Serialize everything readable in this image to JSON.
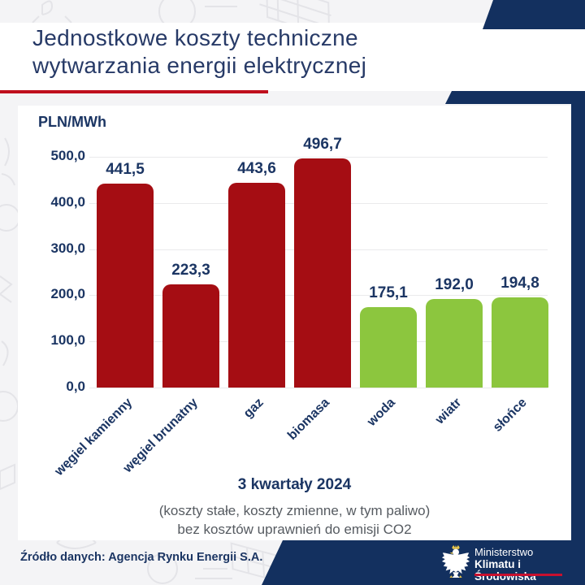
{
  "header": {
    "title_line1": "Jednostkowe koszty techniczne",
    "title_line2": "wytwarzania energii elektrycznej"
  },
  "chart_data": {
    "type": "bar",
    "title": "Jednostkowe koszty techniczne wytwarzania energii elektrycznej",
    "unit": "PLN/MWh",
    "categories": [
      "węgiel kamienny",
      "węgiel brunatny",
      "gaz",
      "biomasa",
      "woda",
      "wiatr",
      "słońce"
    ],
    "values": [
      441.5,
      223.3,
      443.6,
      496.7,
      175.1,
      192.0,
      194.8
    ],
    "value_labels": [
      "441,5",
      "223,3",
      "443,6",
      "496,7",
      "175,1",
      "192,0",
      "194,8"
    ],
    "bar_colors": [
      "#a50d13",
      "#a50d13",
      "#a50d13",
      "#a50d13",
      "#8cc63e",
      "#8cc63e",
      "#8cc63e"
    ],
    "ylim": [
      0,
      500
    ],
    "yticks": [
      0,
      100,
      200,
      300,
      400,
      500
    ],
    "ytick_labels": [
      "0,0",
      "100,0",
      "200,0",
      "300,0",
      "400,0",
      "500,0"
    ],
    "grid": true,
    "legend": null,
    "period": "3 kwartały 2024",
    "notes": [
      "(koszty stałe, koszty zmienne, w tym paliwo)",
      "bez kosztów uprawnień do emisji CO2"
    ]
  },
  "footer": {
    "source": "Źródło danych: Agencja Rynku Energii S.A.",
    "ministry_line1": "Ministerstwo",
    "ministry_line2": "Klimatu i Środowiska"
  },
  "colors": {
    "navy": "#13305f",
    "title_navy": "#273a67",
    "red_bar": "#a50d13",
    "green_bar": "#8cc63e",
    "red_accent": "#bf101d",
    "ministry_red": "#c8102e",
    "background": "#f4f4f6"
  }
}
